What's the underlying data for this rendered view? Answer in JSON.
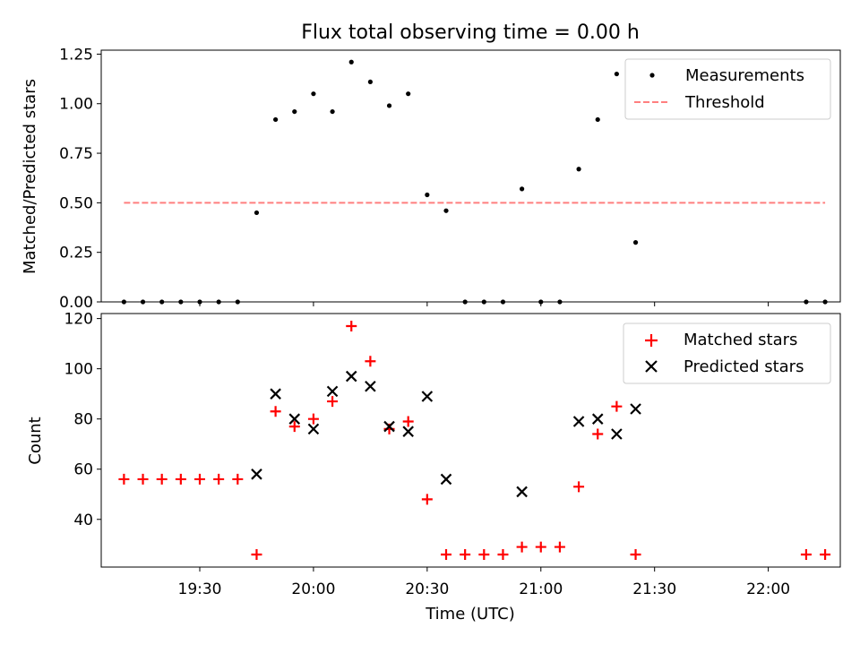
{
  "chart_data": [
    {
      "type": "scatter",
      "title": "Flux total observing time = 0.00 h",
      "xlabel": "",
      "ylabel": "Matched/Predicted stars",
      "ylim": [
        0,
        1.27
      ],
      "yticks": [
        "0.00",
        "0.25",
        "0.50",
        "0.75",
        "1.00",
        "1.25"
      ],
      "ytick_values": [
        0,
        0.25,
        0.5,
        0.75,
        1.0,
        1.25
      ],
      "grid": false,
      "legend_position": "top-right",
      "series": [
        {
          "name": "Measurements",
          "marker": "dot",
          "color": "#000000",
          "points": [
            [
              "19:10",
              0
            ],
            [
              "19:15",
              0
            ],
            [
              "19:20",
              0
            ],
            [
              "19:25",
              0
            ],
            [
              "19:30",
              0
            ],
            [
              "19:35",
              0
            ],
            [
              "19:40",
              0
            ],
            [
              "19:45",
              0.45
            ],
            [
              "19:50",
              0.92
            ],
            [
              "19:55",
              0.96
            ],
            [
              "20:00",
              1.05
            ],
            [
              "20:05",
              0.96
            ],
            [
              "20:10",
              1.21
            ],
            [
              "20:15",
              1.11
            ],
            [
              "20:20",
              0.99
            ],
            [
              "20:25",
              1.05
            ],
            [
              "20:30",
              0.54
            ],
            [
              "20:35",
              0.46
            ],
            [
              "20:40",
              0
            ],
            [
              "20:45",
              0
            ],
            [
              "20:50",
              0
            ],
            [
              "20:55",
              0.57
            ],
            [
              "21:00",
              0
            ],
            [
              "21:05",
              0
            ],
            [
              "21:10",
              0.67
            ],
            [
              "21:15",
              0.92
            ],
            [
              "21:20",
              1.15
            ],
            [
              "21:25",
              0.3
            ],
            [
              "22:10",
              0
            ],
            [
              "22:15",
              0
            ]
          ]
        },
        {
          "name": "Threshold",
          "style": "dashed",
          "color": "#ff7f7f",
          "points": [
            [
              "19:10",
              0.5
            ],
            [
              "22:15",
              0.5
            ]
          ]
        }
      ]
    },
    {
      "type": "scatter",
      "xlabel": "Time (UTC)",
      "ylabel": "Count",
      "xlim": [
        "19:04",
        "22:19"
      ],
      "xticks": [
        "19:30",
        "20:00",
        "20:30",
        "21:00",
        "21:30",
        "22:00"
      ],
      "ylim": [
        21,
        122
      ],
      "yticks": [
        "40",
        "60",
        "80",
        "100",
        "120"
      ],
      "ytick_values": [
        40,
        60,
        80,
        100,
        120
      ],
      "grid": false,
      "legend_position": "top-right",
      "series": [
        {
          "name": "Matched stars",
          "marker": "plus",
          "color": "#ff0000",
          "points": [
            [
              "19:10",
              56
            ],
            [
              "19:15",
              56
            ],
            [
              "19:20",
              56
            ],
            [
              "19:25",
              56
            ],
            [
              "19:30",
              56
            ],
            [
              "19:35",
              56
            ],
            [
              "19:40",
              56
            ],
            [
              "19:45",
              26
            ],
            [
              "19:50",
              83
            ],
            [
              "19:55",
              77
            ],
            [
              "20:00",
              80
            ],
            [
              "20:05",
              87
            ],
            [
              "20:10",
              117
            ],
            [
              "20:15",
              103
            ],
            [
              "20:20",
              76
            ],
            [
              "20:25",
              79
            ],
            [
              "20:30",
              48
            ],
            [
              "20:35",
              26
            ],
            [
              "20:40",
              26
            ],
            [
              "20:45",
              26
            ],
            [
              "20:50",
              26
            ],
            [
              "20:55",
              29
            ],
            [
              "21:00",
              29
            ],
            [
              "21:05",
              29
            ],
            [
              "21:10",
              53
            ],
            [
              "21:15",
              74
            ],
            [
              "21:20",
              85
            ],
            [
              "21:25",
              26
            ],
            [
              "22:10",
              26
            ],
            [
              "22:15",
              26
            ]
          ]
        },
        {
          "name": "Predicted stars",
          "marker": "x",
          "color": "#000000",
          "points": [
            [
              "19:45",
              58
            ],
            [
              "19:50",
              90
            ],
            [
              "19:55",
              80
            ],
            [
              "20:00",
              76
            ],
            [
              "20:05",
              91
            ],
            [
              "20:10",
              97
            ],
            [
              "20:15",
              93
            ],
            [
              "20:20",
              77
            ],
            [
              "20:25",
              75
            ],
            [
              "20:30",
              89
            ],
            [
              "20:35",
              56
            ],
            [
              "20:55",
              51
            ],
            [
              "21:10",
              79
            ],
            [
              "21:15",
              80
            ],
            [
              "21:20",
              74
            ],
            [
              "21:25",
              84
            ]
          ]
        }
      ]
    }
  ]
}
